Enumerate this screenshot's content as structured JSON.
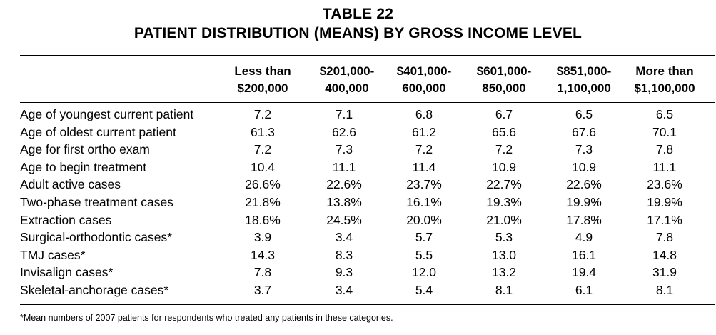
{
  "table": {
    "number": "TABLE 22",
    "title": "PATIENT DISTRIBUTION (MEANS) BY GROSS INCOME LEVEL",
    "columns": [
      {
        "line1": "Less than",
        "line2": "$200,000"
      },
      {
        "line1": "$201,000-",
        "line2": "400,000"
      },
      {
        "line1": "$401,000-",
        "line2": "600,000"
      },
      {
        "line1": "$601,000-",
        "line2": "850,000"
      },
      {
        "line1": "$851,000-",
        "line2": "1,100,000"
      },
      {
        "line1": "More than",
        "line2": "$1,100,000"
      }
    ],
    "rows": [
      {
        "label": "Age of youngest current patient",
        "values": [
          "7.2",
          "7.1",
          "6.8",
          "6.7",
          "6.5",
          "6.5"
        ]
      },
      {
        "label": "Age of oldest current patient",
        "values": [
          "61.3",
          "62.6",
          "61.2",
          "65.6",
          "67.6",
          "70.1"
        ]
      },
      {
        "label": "Age for first ortho exam",
        "values": [
          "7.2",
          "7.3",
          "7.2",
          "7.2",
          "7.3",
          "7.8"
        ]
      },
      {
        "label": "Age to begin treatment",
        "values": [
          "10.4",
          "11.1",
          "11.4",
          "10.9",
          "10.9",
          "11.1"
        ]
      },
      {
        "label": "Adult active cases",
        "values": [
          "26.6%",
          "22.6%",
          "23.7%",
          "22.7%",
          "22.6%",
          "23.6%"
        ]
      },
      {
        "label": "Two-phase treatment cases",
        "values": [
          "21.8%",
          "13.8%",
          "16.1%",
          "19.3%",
          "19.9%",
          "19.9%"
        ]
      },
      {
        "label": "Extraction cases",
        "values": [
          "18.6%",
          "24.5%",
          "20.0%",
          "21.0%",
          "17.8%",
          "17.1%"
        ]
      },
      {
        "label": "Surgical-orthodontic cases*",
        "values": [
          "3.9",
          "3.4",
          "5.7",
          "5.3",
          "4.9",
          "7.8"
        ]
      },
      {
        "label": "TMJ cases*",
        "values": [
          "14.3",
          "8.3",
          "5.5",
          "13.0",
          "16.1",
          "14.8"
        ]
      },
      {
        "label": "Invisalign cases*",
        "values": [
          "7.8",
          "9.3",
          "12.0",
          "13.2",
          "19.4",
          "31.9"
        ]
      },
      {
        "label": "Skeletal-anchorage cases*",
        "values": [
          "3.7",
          "3.4",
          "5.4",
          "8.1",
          "6.1",
          "8.1"
        ]
      }
    ],
    "footnote": "*Mean numbers of 2007 patients for respondents who treated any patients in these categories."
  }
}
